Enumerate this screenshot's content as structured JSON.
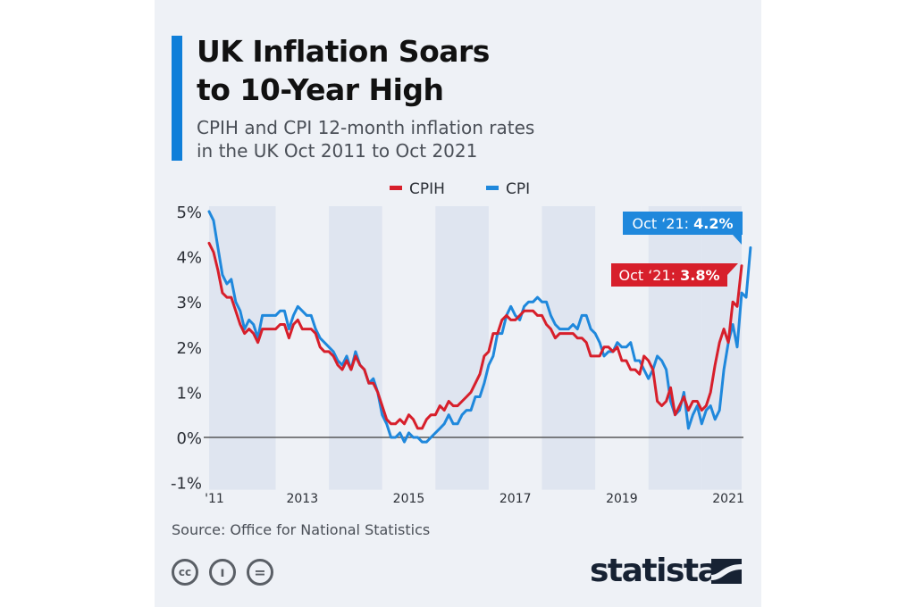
{
  "header": {
    "title_lines": [
      "UK Inflation Soars",
      "to 10-Year High"
    ],
    "subtitle_lines": [
      "CPIH and CPI 12-month inflation rates",
      "in the UK Oct 2011 to Oct 2021"
    ]
  },
  "colors": {
    "accent": "#0f7fd9",
    "cpih": "#d71f2b",
    "cpi": "#1f88dc",
    "band": "#dfe5f0",
    "card_background": "#eef1f6"
  },
  "chart_data": {
    "type": "line",
    "title": "",
    "xlabel": "",
    "ylabel": "",
    "ylim": [
      -1,
      5
    ],
    "y_ticks": [
      -1,
      0,
      1,
      2,
      3,
      4,
      5
    ],
    "y_tick_labels": [
      "-1%",
      "0%",
      "1%",
      "2%",
      "3%",
      "4%",
      "5%"
    ],
    "x_tick_labels": [
      "'11",
      "2013",
      "2015",
      "2017",
      "2019",
      "2021"
    ],
    "x_tick_years": [
      2011,
      2013,
      2015,
      2017,
      2019,
      2021
    ],
    "x_range": [
      "Oct 2011",
      "Oct 2021"
    ],
    "x_start_year": 2011,
    "x_start_month": 10,
    "shaded_years": [
      2012,
      2014,
      2016,
      2018,
      2020
    ],
    "legend": {
      "position": "top-center",
      "items": [
        "CPIH",
        "CPI"
      ]
    },
    "series": [
      {
        "name": "CPIH",
        "color": "#d71f2b",
        "values": [
          4.3,
          4.1,
          3.7,
          3.2,
          3.1,
          3.1,
          2.8,
          2.5,
          2.3,
          2.4,
          2.3,
          2.1,
          2.4,
          2.4,
          2.4,
          2.4,
          2.5,
          2.5,
          2.2,
          2.5,
          2.6,
          2.4,
          2.4,
          2.4,
          2.3,
          2.0,
          1.9,
          1.9,
          1.8,
          1.6,
          1.5,
          1.7,
          1.5,
          1.8,
          1.6,
          1.5,
          1.2,
          1.2,
          1.0,
          0.7,
          0.4,
          0.3,
          0.3,
          0.4,
          0.3,
          0.5,
          0.4,
          0.2,
          0.2,
          0.4,
          0.5,
          0.5,
          0.7,
          0.6,
          0.8,
          0.7,
          0.7,
          0.8,
          0.9,
          1.0,
          1.2,
          1.4,
          1.8,
          1.9,
          2.3,
          2.3,
          2.6,
          2.7,
          2.6,
          2.6,
          2.7,
          2.8,
          2.8,
          2.8,
          2.7,
          2.7,
          2.5,
          2.4,
          2.2,
          2.3,
          2.3,
          2.3,
          2.3,
          2.2,
          2.2,
          2.1,
          1.8,
          1.8,
          1.8,
          2.0,
          2.0,
          1.9,
          2.0,
          1.7,
          1.7,
          1.5,
          1.5,
          1.4,
          1.8,
          1.7,
          1.5,
          0.8,
          0.7,
          0.8,
          1.1,
          0.5,
          0.7,
          0.9,
          0.6,
          0.8,
          0.8,
          0.6,
          0.7,
          1.0,
          1.6,
          2.1,
          2.4,
          2.1,
          3.0,
          2.9,
          3.8
        ]
      },
      {
        "name": "CPI",
        "color": "#1f88dc",
        "values": [
          5.0,
          4.8,
          4.2,
          3.6,
          3.4,
          3.5,
          3.0,
          2.8,
          2.4,
          2.6,
          2.5,
          2.2,
          2.7,
          2.7,
          2.7,
          2.7,
          2.8,
          2.8,
          2.4,
          2.7,
          2.9,
          2.8,
          2.7,
          2.7,
          2.4,
          2.2,
          2.1,
          2.0,
          1.9,
          1.7,
          1.6,
          1.8,
          1.5,
          1.9,
          1.6,
          1.5,
          1.2,
          1.3,
          1.0,
          0.5,
          0.3,
          0.0,
          0.0,
          0.1,
          -0.1,
          0.1,
          0.0,
          0.0,
          -0.1,
          -0.1,
          0.0,
          0.1,
          0.2,
          0.3,
          0.5,
          0.3,
          0.3,
          0.5,
          0.6,
          0.6,
          0.9,
          0.9,
          1.2,
          1.6,
          1.8,
          2.3,
          2.3,
          2.7,
          2.9,
          2.7,
          2.6,
          2.9,
          3.0,
          3.0,
          3.1,
          3.0,
          3.0,
          2.7,
          2.5,
          2.4,
          2.4,
          2.4,
          2.5,
          2.4,
          2.7,
          2.7,
          2.4,
          2.3,
          2.1,
          1.8,
          1.9,
          1.9,
          2.1,
          2.0,
          2.0,
          2.1,
          1.7,
          1.7,
          1.5,
          1.3,
          1.5,
          1.8,
          1.7,
          1.5,
          0.8,
          0.5,
          0.6,
          1.0,
          0.2,
          0.5,
          0.7,
          0.3,
          0.6,
          0.7,
          0.4,
          0.6,
          1.5,
          2.1,
          2.5,
          2.0,
          3.2,
          3.1,
          4.2
        ]
      }
    ],
    "annotations": [
      {
        "series": "CPI",
        "prefix": "Oct ‘21: ",
        "value_text": "4.2%",
        "value": 4.2
      },
      {
        "series": "CPIH",
        "prefix": "Oct ‘21: ",
        "value_text": "3.8%",
        "value": 3.8
      }
    ]
  },
  "footer": {
    "source": "Source: Office for National Statistics",
    "license_icons": [
      "cc-icon",
      "by-attribution-icon",
      "no-derivatives-icon"
    ],
    "cc_glyphs": [
      "cc",
      "ı",
      "="
    ],
    "brand": "statista"
  }
}
